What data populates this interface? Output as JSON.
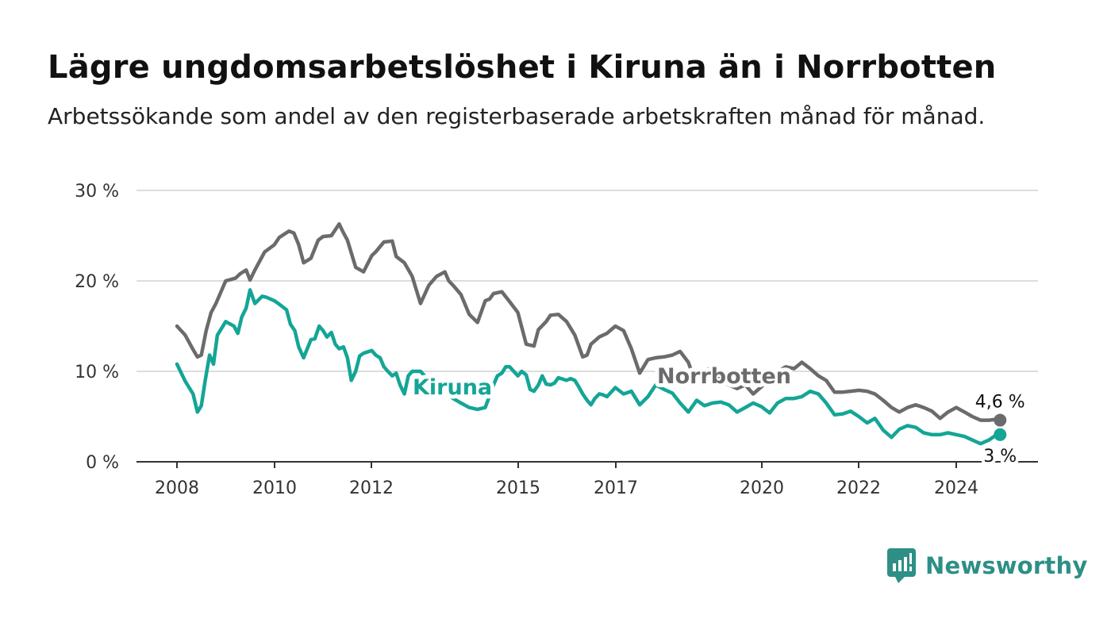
{
  "title": "Lägre ungdomsarbetslöshet i Kiruna än i Norrbotten",
  "subtitle": "Arbetssökande som andel av den registerbaserade arbetskraften månad för månad.",
  "brand": "Newsworthy",
  "colors": {
    "kiruna": "#14a596",
    "norrbotten": "#6b6b6e",
    "grid": "#dddddd",
    "axis": "#333333",
    "brand": "#2d8f86"
  },
  "chart_data": {
    "type": "line",
    "title": "Lägre ungdomsarbetslöshet i Kiruna än i Norrbotten",
    "subtitle": "Arbetssökande som andel av den registerbaserade arbetskraften månad för månad.",
    "xlabel": "",
    "ylabel": "",
    "xlim": [
      2008.0,
      2025.0
    ],
    "ylim": [
      0,
      30
    ],
    "x_ticks": [
      "2008",
      "2010",
      "2012",
      "2015",
      "2017",
      "2020",
      "2022",
      "2024"
    ],
    "y_ticks": [
      "0 %",
      "10 %",
      "20 %",
      "30 %"
    ],
    "grid": true,
    "x_unit": "year",
    "series": [
      {
        "name": "Norrbotten",
        "end_label": "4,6 %",
        "x": [
          2008.0,
          2008.17,
          2008.33,
          2008.42,
          2008.5,
          2008.6,
          2008.7,
          2008.8,
          2009.0,
          2009.2,
          2009.3,
          2009.42,
          2009.5,
          2009.6,
          2009.8,
          2010.0,
          2010.1,
          2010.3,
          2010.4,
          2010.5,
          2010.6,
          2010.75,
          2010.9,
          2011.0,
          2011.17,
          2011.33,
          2011.4,
          2011.5,
          2011.67,
          2011.83,
          2012.0,
          2012.08,
          2012.25,
          2012.42,
          2012.5,
          2012.67,
          2012.83,
          2013.0,
          2013.17,
          2013.33,
          2013.5,
          2013.58,
          2013.67,
          2013.75,
          2013.83,
          2014.0,
          2014.17,
          2014.33,
          2014.42,
          2014.5,
          2014.67,
          2014.83,
          2015.0,
          2015.17,
          2015.33,
          2015.42,
          2015.58,
          2015.67,
          2015.83,
          2016.0,
          2016.17,
          2016.33,
          2016.42,
          2016.5,
          2016.67,
          2016.83,
          2017.0,
          2017.17,
          2017.33,
          2017.5,
          2017.67,
          2017.83,
          2018.0,
          2018.17,
          2018.33,
          2018.5,
          2018.67,
          2018.83,
          2019.0,
          2019.17,
          2019.33,
          2019.5,
          2019.67,
          2019.83,
          2020.0,
          2020.17,
          2020.33,
          2020.5,
          2020.67,
          2020.83,
          2021.0,
          2021.17,
          2021.33,
          2021.5,
          2021.67,
          2021.83,
          2022.0,
          2022.17,
          2022.33,
          2022.5,
          2022.67,
          2022.83,
          2023.0,
          2023.17,
          2023.33,
          2023.5,
          2023.67,
          2023.83,
          2024.0,
          2024.17,
          2024.33,
          2024.5,
          2024.67,
          2024.83,
          2024.9
        ],
        "values": [
          15.0,
          14.0,
          12.4,
          11.6,
          11.8,
          14.5,
          16.5,
          17.5,
          20.0,
          20.3,
          20.8,
          21.2,
          20.1,
          21.2,
          23.2,
          24.0,
          24.8,
          25.5,
          25.3,
          24.0,
          22.0,
          22.5,
          24.5,
          24.9,
          25.0,
          26.3,
          25.5,
          24.5,
          21.5,
          21.0,
          22.8,
          23.2,
          24.3,
          24.4,
          22.7,
          22.0,
          20.5,
          17.5,
          19.5,
          20.5,
          21.0,
          20.0,
          19.5,
          19.0,
          18.5,
          16.3,
          15.4,
          17.8,
          18.0,
          18.6,
          18.8,
          17.7,
          16.5,
          13.0,
          12.8,
          14.6,
          15.5,
          16.2,
          16.3,
          15.5,
          14.0,
          11.6,
          11.8,
          13.0,
          13.8,
          14.2,
          15.0,
          14.5,
          12.5,
          9.8,
          11.3,
          11.5,
          11.6,
          11.8,
          12.2,
          11.0,
          8.5,
          10.0,
          10.5,
          9.0,
          8.5,
          8.1,
          8.5,
          7.5,
          8.3,
          9.0,
          10.0,
          10.5,
          10.3,
          11.0,
          10.3,
          9.5,
          9.0,
          7.7,
          7.7,
          7.8,
          7.9,
          7.8,
          7.5,
          6.8,
          6.0,
          5.5,
          6.0,
          6.3,
          6.0,
          5.6,
          4.8,
          5.5,
          6.0,
          5.5,
          5.0,
          4.6,
          4.6,
          4.7,
          4.6
        ]
      },
      {
        "name": "Kiruna",
        "end_label": "3 %",
        "x": [
          2008.0,
          2008.17,
          2008.33,
          2008.42,
          2008.5,
          2008.58,
          2008.67,
          2008.75,
          2008.83,
          2009.0,
          2009.17,
          2009.25,
          2009.33,
          2009.42,
          2009.5,
          2009.6,
          2009.75,
          2009.83,
          2010.0,
          2010.08,
          2010.25,
          2010.33,
          2010.42,
          2010.5,
          2010.6,
          2010.75,
          2010.83,
          2010.92,
          2011.0,
          2011.08,
          2011.17,
          2011.25,
          2011.33,
          2011.42,
          2011.5,
          2011.58,
          2011.67,
          2011.75,
          2011.83,
          2012.0,
          2012.08,
          2012.17,
          2012.25,
          2012.33,
          2012.42,
          2012.5,
          2012.58,
          2012.67,
          2012.75,
          2012.83,
          2013.0,
          2013.17,
          2013.33,
          2013.5,
          2013.67,
          2013.83,
          2014.0,
          2014.17,
          2014.33,
          2014.5,
          2014.58,
          2014.67,
          2014.75,
          2014.83,
          2015.0,
          2015.08,
          2015.17,
          2015.25,
          2015.33,
          2015.42,
          2015.5,
          2015.58,
          2015.67,
          2015.75,
          2015.83,
          2016.0,
          2016.08,
          2016.17,
          2016.25,
          2016.33,
          2016.42,
          2016.5,
          2016.58,
          2016.67,
          2016.75,
          2016.83,
          2017.0,
          2017.17,
          2017.33,
          2017.5,
          2017.67,
          2017.83,
          2018.0,
          2018.17,
          2018.33,
          2018.5,
          2018.67,
          2018.83,
          2019.0,
          2019.17,
          2019.33,
          2019.5,
          2019.67,
          2019.83,
          2020.0,
          2020.17,
          2020.33,
          2020.5,
          2020.67,
          2020.83,
          2021.0,
          2021.17,
          2021.33,
          2021.5,
          2021.67,
          2021.83,
          2022.0,
          2022.17,
          2022.33,
          2022.5,
          2022.67,
          2022.83,
          2023.0,
          2023.17,
          2023.33,
          2023.5,
          2023.67,
          2023.83,
          2024.0,
          2024.17,
          2024.33,
          2024.5,
          2024.67,
          2024.83,
          2024.9
        ],
        "values": [
          10.8,
          8.9,
          7.5,
          5.5,
          6.2,
          9.0,
          11.8,
          10.8,
          14.0,
          15.5,
          15.0,
          14.2,
          16.0,
          17.0,
          19.0,
          17.5,
          18.3,
          18.2,
          17.8,
          17.5,
          16.8,
          15.2,
          14.5,
          12.7,
          11.5,
          13.5,
          13.6,
          15.0,
          14.5,
          13.8,
          14.3,
          13.0,
          12.5,
          12.7,
          11.5,
          9.0,
          10.0,
          11.7,
          12.0,
          12.3,
          11.8,
          11.5,
          10.5,
          10.0,
          9.5,
          9.8,
          8.5,
          7.5,
          9.5,
          10.0,
          10.0,
          9.0,
          8.5,
          7.8,
          7.0,
          6.5,
          6.0,
          5.8,
          6.0,
          8.5,
          9.5,
          9.8,
          10.5,
          10.5,
          9.5,
          10.0,
          9.6,
          8.0,
          7.8,
          8.5,
          9.5,
          8.6,
          8.5,
          8.7,
          9.3,
          9.0,
          9.2,
          9.0,
          8.3,
          7.5,
          6.8,
          6.3,
          7.0,
          7.5,
          7.4,
          7.2,
          8.2,
          7.5,
          7.8,
          6.3,
          7.2,
          8.5,
          8.0,
          7.6,
          6.5,
          5.5,
          6.8,
          6.2,
          6.5,
          6.6,
          6.3,
          5.5,
          6.0,
          6.5,
          6.1,
          5.4,
          6.5,
          7.0,
          7.0,
          7.2,
          7.8,
          7.5,
          6.5,
          5.2,
          5.3,
          5.6,
          5.0,
          4.3,
          4.8,
          3.5,
          2.7,
          3.6,
          4.0,
          3.8,
          3.2,
          3.0,
          3.0,
          3.2,
          3.0,
          2.8,
          2.4,
          2.0,
          2.4,
          3.0,
          3.0
        ]
      }
    ]
  }
}
